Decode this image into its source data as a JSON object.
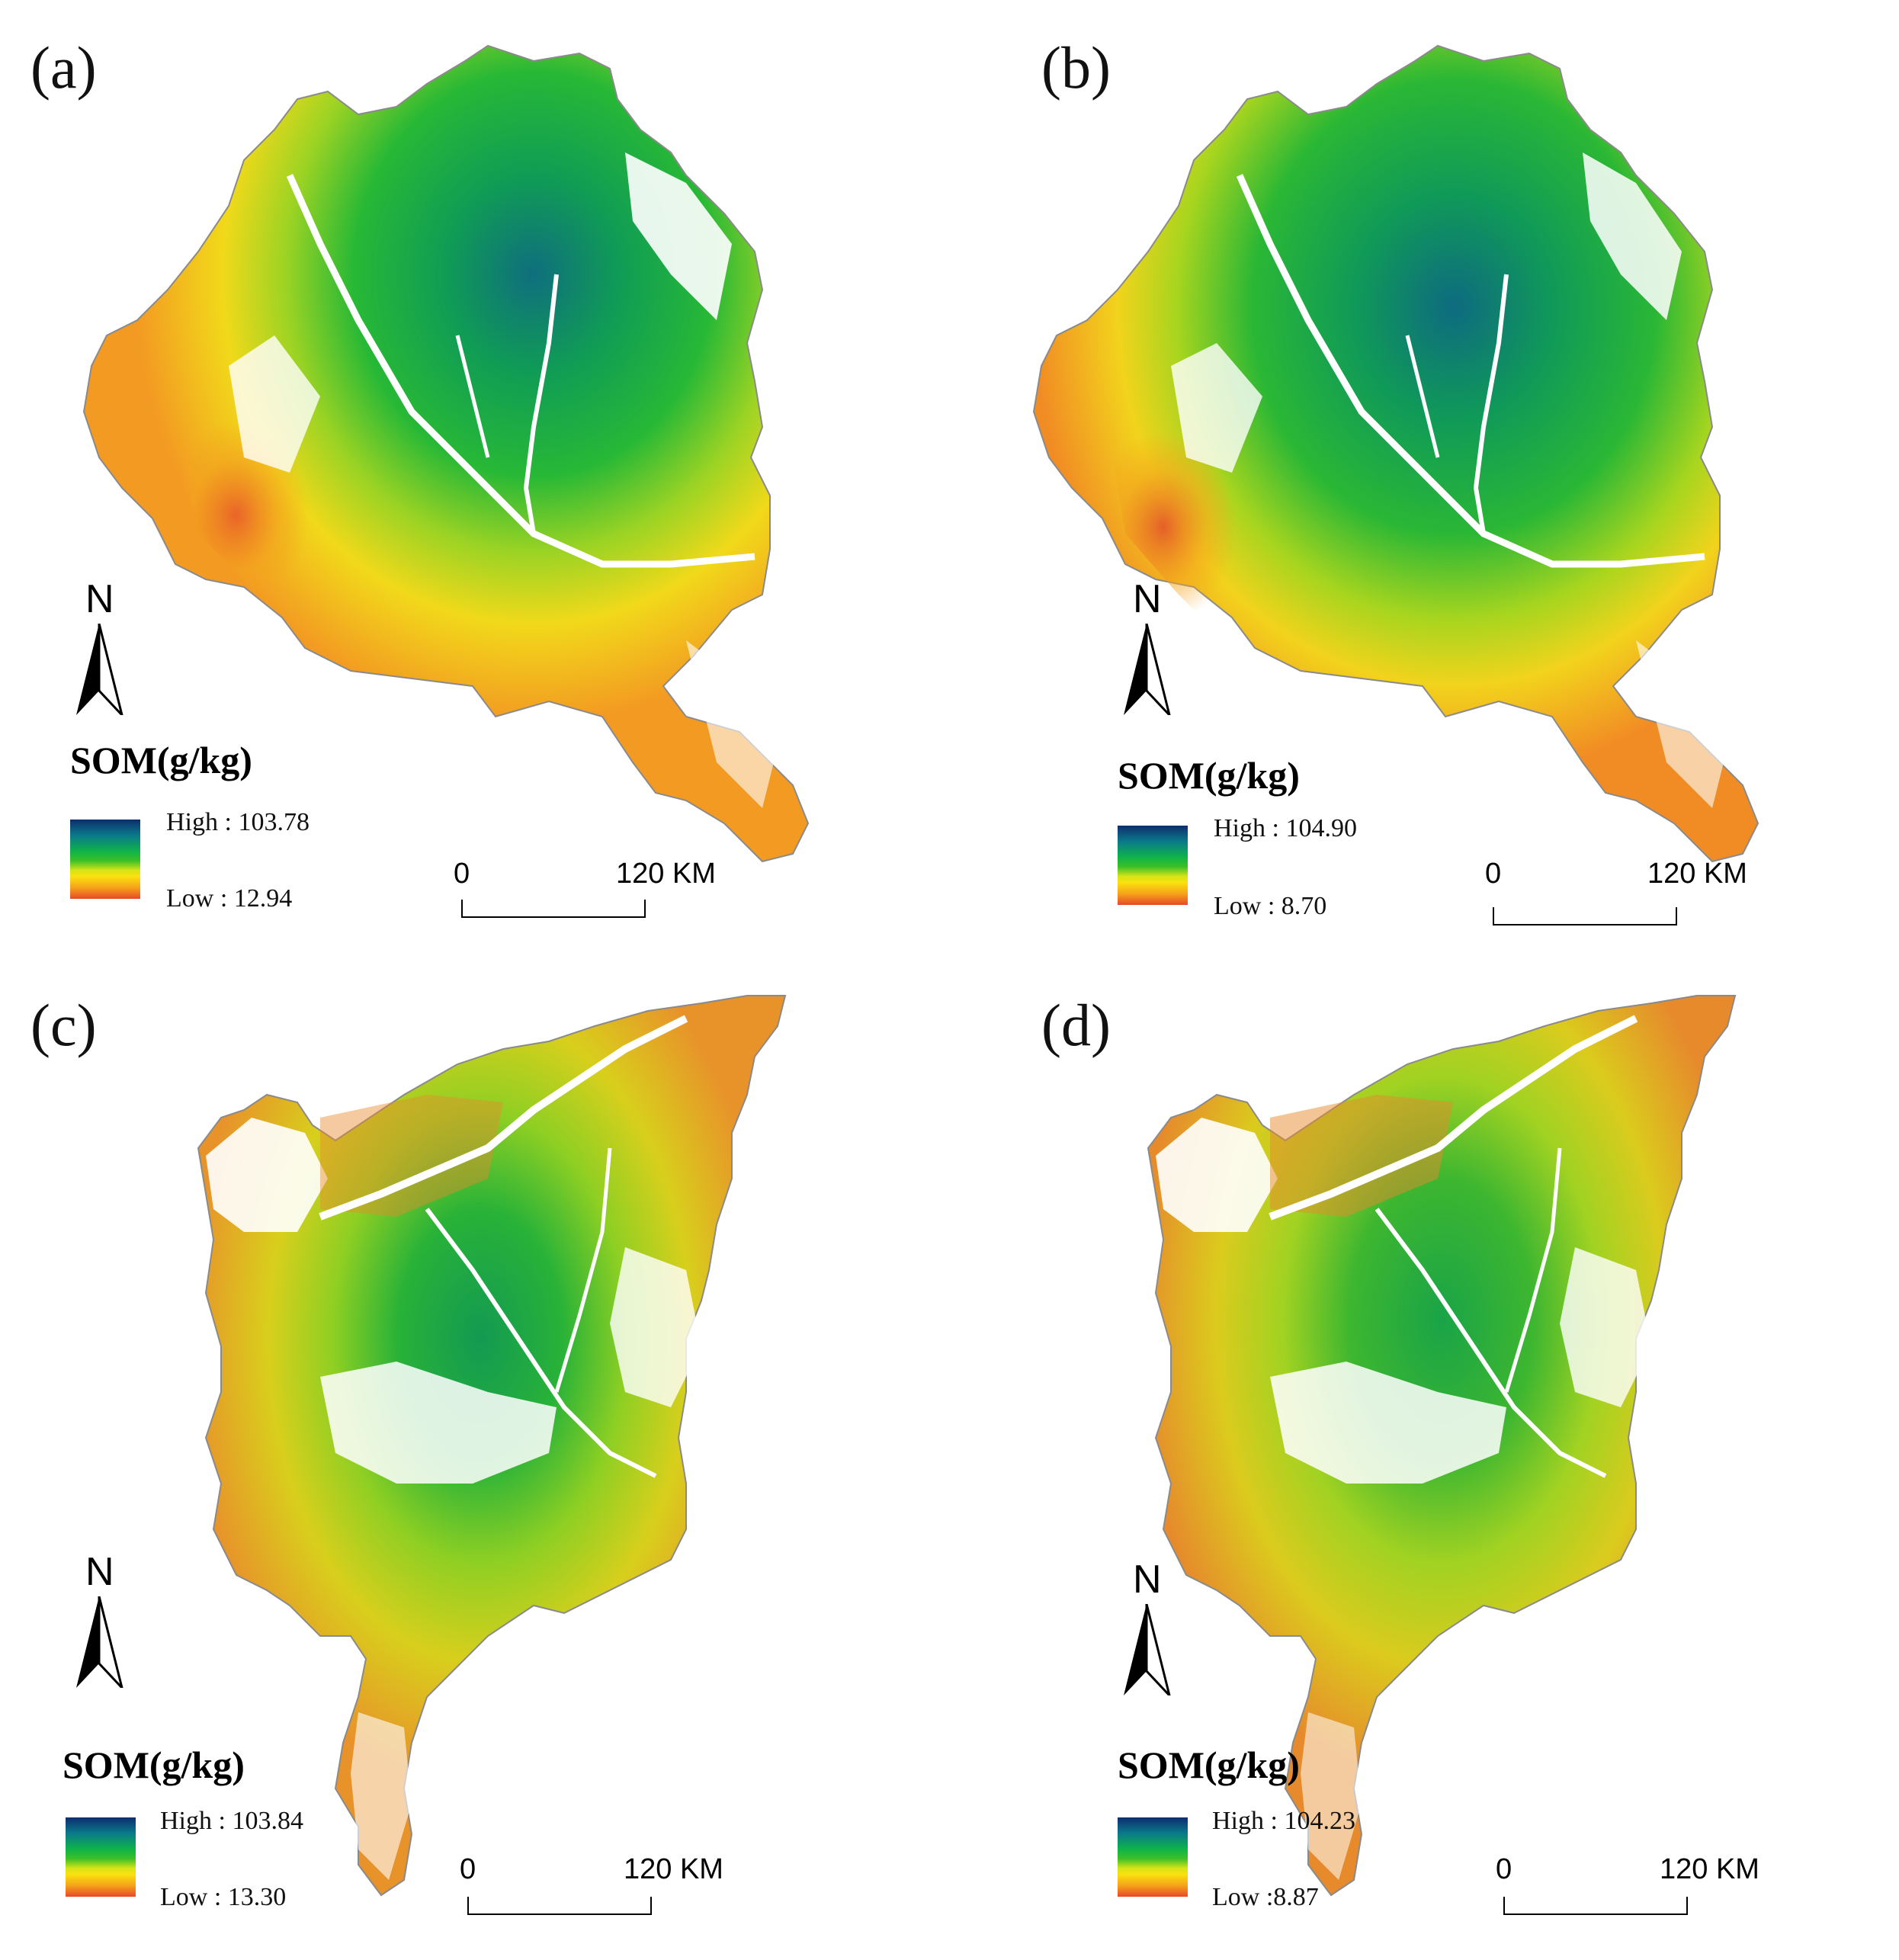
{
  "panels": [
    {
      "id": "a",
      "label": "(a)",
      "legend_title": "SOM(g/kg)",
      "high_text": "High : 103.78",
      "low_text": "Low : 12.94",
      "high_value": 103.78,
      "low_value": 12.94,
      "scale_start": "0",
      "scale_end": "120 KM",
      "north": "N",
      "extent": "north"
    },
    {
      "id": "b",
      "label": "(b)",
      "legend_title": "SOM(g/kg)",
      "high_text": "High : 104.90",
      "low_text": "Low : 8.70",
      "high_value": 104.9,
      "low_value": 8.7,
      "scale_start": "0",
      "scale_end": "120 KM",
      "north": "N",
      "extent": "north"
    },
    {
      "id": "c",
      "label": "(c)",
      "legend_title": "SOM(g/kg)",
      "high_text": "High : 103.84",
      "low_text": "Low : 13.30",
      "high_value": 103.84,
      "low_value": 13.3,
      "scale_start": "0",
      "scale_end": "120 KM",
      "north": "N",
      "extent": "south"
    },
    {
      "id": "d",
      "label": "(d)",
      "legend_title": "SOM(g/kg)",
      "high_text": "High : 104.23",
      "low_text": "Low :8.87",
      "high_value": 104.23,
      "low_value": 8.87,
      "scale_start": "0",
      "scale_end": "120 KM",
      "north": "N",
      "extent": "south"
    }
  ],
  "colors": {
    "high": "#0d2c6e",
    "mid_high": "#0a7a8a",
    "mid": "#0fb34a",
    "mid_low": "#d6e418",
    "low_mid": "#fbe10e",
    "low": "#e8482a",
    "boundary": "#8a8a8a",
    "river": "#ffffff"
  }
}
